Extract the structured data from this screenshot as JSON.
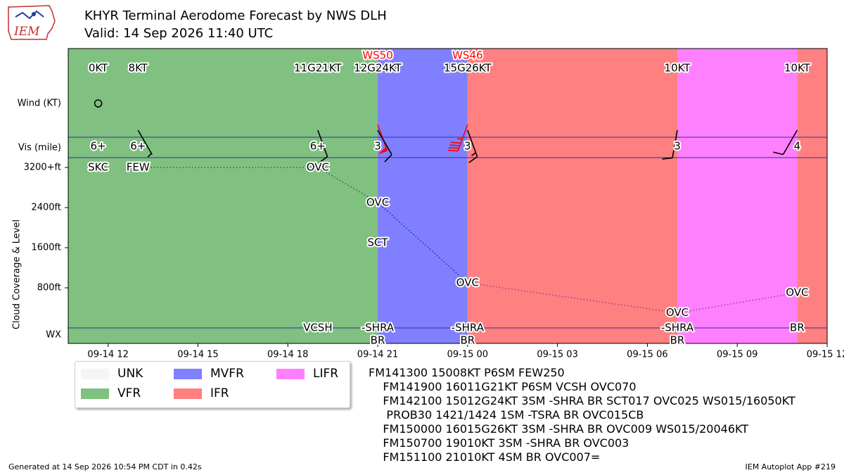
{
  "title": "KHYR Terminal Aerodome Forecast by NWS DLH",
  "subtitle": "Valid: 14 Sep 2026 11:40 UTC",
  "logo_text": "IEM",
  "footer": {
    "generated": "Generated at 14 Sep 2026 10:54 PM CDT in 0.42s",
    "app": "IEM Autoplot App #219"
  },
  "legend": [
    {
      "label": "UNK",
      "color": "#f5f5f5"
    },
    {
      "label": "VFR",
      "color": "#80c080"
    },
    {
      "label": "MVFR",
      "color": "#8080ff"
    },
    {
      "label": "IFR",
      "color": "#ff8080"
    },
    {
      "label": "LIFR",
      "color": "#ff80ff"
    }
  ],
  "taf_lines": [
    "FM141300 15008KT P6SM FEW250",
    "    FM141900 16011G21KT P6SM VCSH OVC070",
    "    FM142100 15012G24KT 3SM -SHRA BR SCT017 OVC025 WS015/16050KT",
    "     PROB30 1421/1424 1SM -TSRA BR OVC015CB",
    "    FM150000 16015G26KT 3SM -SHRA BR OVC009 WS015/20046KT",
    "    FM150700 19010KT 3SM -SHRA BR OVC003",
    "    FM151100 21010KT 4SM BR OVC007="
  ],
  "chart_data": {
    "type": "timeline",
    "x_start_hour": 10.67,
    "x_end_hour": 36,
    "y_labels": {
      "wind": "Wind (KT)",
      "vis": "Vis (mile)",
      "wx": "WX"
    },
    "ylabel": "Cloud Coverage & Level",
    "cloud_ticks": [
      {
        "label": "3200+ft",
        "ft": 3200
      },
      {
        "label": "2400ft",
        "ft": 2400
      },
      {
        "label": "1600ft",
        "ft": 1600
      },
      {
        "label": "800ft",
        "ft": 800
      }
    ],
    "x_ticks": [
      {
        "hour": 12,
        "label": "09-14 12"
      },
      {
        "hour": 15,
        "label": "09-14 15"
      },
      {
        "hour": 18,
        "label": "09-14 18"
      },
      {
        "hour": 21,
        "label": "09-14 21"
      },
      {
        "hour": 24,
        "label": "09-15 00"
      },
      {
        "hour": 27,
        "label": "09-15 03"
      },
      {
        "hour": 30,
        "label": "09-15 06"
      },
      {
        "hour": 33,
        "label": "09-15 09"
      },
      {
        "hour": 36,
        "label": "09-15 12"
      }
    ],
    "categories": [
      {
        "start": 10.67,
        "end": 21,
        "cat": "VFR",
        "color": "#80c080"
      },
      {
        "start": 21,
        "end": 24,
        "cat": "MVFR",
        "color": "#8080ff"
      },
      {
        "start": 24,
        "end": 31,
        "cat": "IFR",
        "color": "#ff8080"
      },
      {
        "start": 31,
        "end": 35,
        "cat": "LIFR",
        "color": "#ff80ff"
      },
      {
        "start": 35,
        "end": 36,
        "cat": "IFR",
        "color": "#ff8080"
      }
    ],
    "forecasts": [
      {
        "hour": 11.67,
        "wind": "0KT",
        "dir": 0,
        "speed": 0,
        "gust": 0,
        "vis": "6+",
        "ws": "",
        "wx": "",
        "wx2": "",
        "clouds": [
          {
            "label": "SKC",
            "ft": 3200
          }
        ]
      },
      {
        "hour": 13,
        "wind": "8KT",
        "dir": 150,
        "speed": 8,
        "gust": 0,
        "vis": "6+",
        "ws": "",
        "wx": "",
        "wx2": "",
        "clouds": [
          {
            "label": "FEW",
            "ft": 3200
          }
        ]
      },
      {
        "hour": 19,
        "wind": "11G21KT",
        "dir": 160,
        "speed": 11,
        "gust": 21,
        "vis": "6+",
        "ws": "",
        "wx": "VCSH",
        "wx2": "",
        "clouds": [
          {
            "label": "OVC",
            "ft": 3200
          }
        ]
      },
      {
        "hour": 21,
        "wind": "12G24KT",
        "dir": 150,
        "speed": 12,
        "gust": 24,
        "vis": "3",
        "ws": "WS50",
        "ws_dir": 160,
        "wx": "-SHRA",
        "wx2": "BR",
        "clouds": [
          {
            "label": "OVC",
            "ft": 2500
          },
          {
            "label": "SCT",
            "ft": 1700
          }
        ]
      },
      {
        "hour": 24,
        "wind": "15G26KT",
        "dir": 160,
        "speed": 15,
        "gust": 26,
        "vis": "3",
        "ws": "WS46",
        "ws_dir": 200,
        "wx": "-SHRA",
        "wx2": "BR",
        "clouds": [
          {
            "label": "OVC",
            "ft": 900
          }
        ]
      },
      {
        "hour": 31,
        "wind": "10KT",
        "dir": 190,
        "speed": 10,
        "gust": 0,
        "vis": "3",
        "ws": "",
        "wx": "-SHRA",
        "wx2": "BR",
        "clouds": [
          {
            "label": "OVC",
            "ft": 300
          }
        ]
      },
      {
        "hour": 35,
        "wind": "10KT",
        "dir": 210,
        "speed": 10,
        "gust": 0,
        "vis": "4",
        "ws": "",
        "wx": "BR",
        "wx2": "",
        "clouds": [
          {
            "label": "OVC",
            "ft": 700
          }
        ]
      }
    ],
    "cloud_line_points": [
      {
        "hour": 13,
        "ft": 3200
      },
      {
        "hour": 19,
        "ft": 3200
      },
      {
        "hour": 21,
        "ft": 2500
      },
      {
        "hour": 24,
        "ft": 900
      },
      {
        "hour": 31,
        "ft": 300
      },
      {
        "hour": 35,
        "ft": 700
      }
    ]
  }
}
